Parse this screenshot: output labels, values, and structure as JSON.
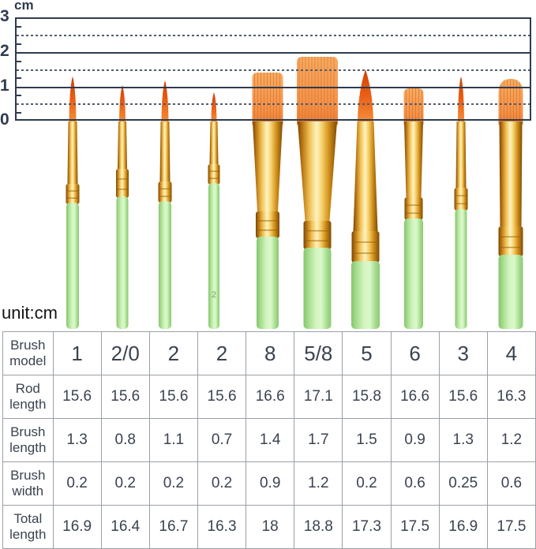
{
  "ruler": {
    "unit_label": "cm",
    "tick_labels": [
      "3",
      "2",
      "1",
      "0"
    ],
    "max_cm": 3,
    "solid_lines_cm": [
      0,
      1,
      2,
      3
    ],
    "dashed_lines_cm": [
      0.5,
      1.5,
      2.5
    ]
  },
  "unit_note": "unit:cm",
  "table": {
    "row_headers": [
      "Brush model",
      "Rod length",
      "Brush length",
      "Brush width",
      "Total length"
    ],
    "rows": [
      {
        "key": "model",
        "label": "Brush model",
        "values": [
          "1",
          "2/0",
          "2",
          "2",
          "8",
          "5/8",
          "5",
          "6",
          "3",
          "4"
        ]
      },
      {
        "key": "rod_length",
        "label": "Rod length",
        "values": [
          "15.6",
          "15.6",
          "15.6",
          "15.6",
          "16.6",
          "17.1",
          "15.8",
          "16.6",
          "15.6",
          "16.3"
        ]
      },
      {
        "key": "brush_length",
        "label": "Brush length",
        "values": [
          "1.3",
          "0.8",
          "1.1",
          "0.7",
          "1.4",
          "1.7",
          "1.5",
          "0.9",
          "1.3",
          "1.2"
        ]
      },
      {
        "key": "brush_width",
        "label": "Brush width",
        "values": [
          "0.2",
          "0.2",
          "0.2",
          "0.2",
          "0.9",
          "1.2",
          "0.2",
          "0.6",
          "0.25",
          "0.6"
        ]
      },
      {
        "key": "total_length",
        "label": "Total length",
        "values": [
          "16.9",
          "16.4",
          "16.7",
          "16.3",
          "18",
          "18.8",
          "17.3",
          "17.5",
          "16.9",
          "17.5"
        ]
      }
    ]
  },
  "brushes": [
    {
      "model": "1",
      "type": "round"
    },
    {
      "model": "2/0",
      "type": "round"
    },
    {
      "model": "2",
      "type": "round"
    },
    {
      "model": "2",
      "type": "round",
      "handle_mark": "2"
    },
    {
      "model": "8",
      "type": "flat"
    },
    {
      "model": "5/8",
      "type": "flat"
    },
    {
      "model": "5",
      "type": "round"
    },
    {
      "model": "6",
      "type": "flat"
    },
    {
      "model": "3",
      "type": "round"
    },
    {
      "model": "4",
      "type": "filbert"
    }
  ],
  "colors": {
    "handle_green": "#bdeca9",
    "handle_green_edge": "#86c46e",
    "ferrule_gold": "#f0c052",
    "ferrule_gold_dark": "#7a4503",
    "bristle_orange_flat": "#f9ab62",
    "bristle_red_orange": "#e85c12",
    "ruler_ink": "#2f3b4e",
    "table_border": "#9aa0a6",
    "table_text": "#3a4350",
    "unit_note_text": "#141414"
  }
}
